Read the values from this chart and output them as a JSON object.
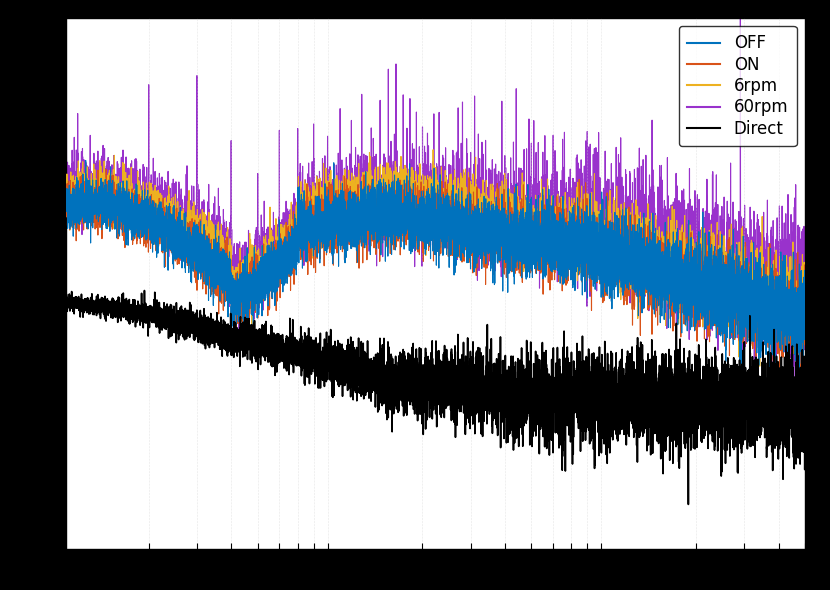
{
  "title": "",
  "xlabel": "",
  "ylabel": "",
  "legend_labels": [
    "OFF",
    "ON",
    "6rpm",
    "60rpm",
    "Direct"
  ],
  "line_colors": [
    "#0072BD",
    "#D95319",
    "#EDB120",
    "#9932CC",
    "#000000"
  ],
  "line_widths": [
    0.8,
    0.8,
    0.8,
    0.8,
    1.2
  ],
  "background_color": "#000000",
  "axes_background": "#ffffff",
  "grid_color": "#aaaaaa",
  "text_color": "#000000",
  "xmin": 1,
  "xmax": 500,
  "figsize": [
    8.3,
    5.9
  ],
  "dpi": 100,
  "legend_facecolor": "#ffffff",
  "legend_edgecolor": "#000000"
}
